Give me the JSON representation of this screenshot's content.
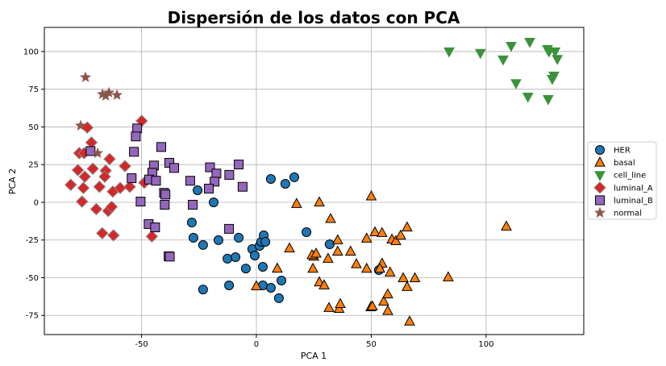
{
  "chart_data": {
    "type": "scatter",
    "title": "Dispersión de los datos con PCA",
    "xlabel": "PCA 1",
    "ylabel": "PCA 2",
    "xlim": [
      -92.3,
      142.5
    ],
    "ylim": [
      -87.7,
      116
    ],
    "xticks": [
      -50,
      0,
      50,
      100
    ],
    "yticks": [
      -75,
      -50,
      -25,
      0,
      25,
      50,
      75,
      100
    ],
    "grid": true,
    "legend_position": "center-right",
    "series": [
      {
        "name": "HER",
        "marker": "circle",
        "color": "#1f77b4",
        "edge": "#000000",
        "points": [
          [
            -25.6,
            8
          ],
          [
            -18.6,
            0
          ],
          [
            -28.1,
            -13.4
          ],
          [
            -27.4,
            -23.5
          ],
          [
            -23.2,
            -28.3
          ],
          [
            -16.5,
            -25.1
          ],
          [
            -7.7,
            -23.5
          ],
          [
            -23.2,
            -57.8
          ],
          [
            -12.6,
            -37.4
          ],
          [
            -9.1,
            -36.4
          ],
          [
            -11.9,
            -55.1
          ],
          [
            -4.6,
            -43.9
          ],
          [
            -1.8,
            -31
          ],
          [
            -0.7,
            -35.3
          ],
          [
            1.4,
            -28.9
          ],
          [
            2.1,
            -26.2
          ],
          [
            3.2,
            -21.9
          ],
          [
            3.9,
            -26.2
          ],
          [
            2.8,
            -42.8
          ],
          [
            2.8,
            -55.1
          ],
          [
            6.3,
            -56.7
          ],
          [
            10.9,
            -51.9
          ],
          [
            9.8,
            -63.6
          ],
          [
            6.3,
            15.5
          ],
          [
            12.6,
            12.3
          ],
          [
            16.5,
            16.6
          ],
          [
            21.8,
            -19.8
          ],
          [
            31.9,
            -27.8
          ],
          [
            53.3,
            -44.9
          ]
        ]
      },
      {
        "name": "basal",
        "marker": "triangle-up",
        "color": "#ff7f0e",
        "edge": "#000000",
        "points": [
          [
            17.5,
            -1
          ],
          [
            27.4,
            0
          ],
          [
            32.3,
            -11
          ],
          [
            50,
            4
          ],
          [
            14.4,
            -30.5
          ],
          [
            9.1,
            -43.9
          ],
          [
            0,
            -55.6
          ],
          [
            25,
            -36
          ],
          [
            24.2,
            -35
          ],
          [
            26,
            -34
          ],
          [
            31.2,
            -37.4
          ],
          [
            35.4,
            -32.6
          ],
          [
            41,
            -32.6
          ],
          [
            24.6,
            -44
          ],
          [
            27.4,
            -53
          ],
          [
            29.5,
            -55
          ],
          [
            31.6,
            -70
          ],
          [
            36,
            -70.6
          ],
          [
            36.5,
            -67.4
          ],
          [
            35.4,
            -25.1
          ],
          [
            43.5,
            -41
          ],
          [
            48,
            -24
          ],
          [
            48,
            -44
          ],
          [
            49.8,
            -69.5
          ],
          [
            50.5,
            -69
          ],
          [
            51.6,
            -19.8
          ],
          [
            54.7,
            -20.3
          ],
          [
            54.7,
            -40.6
          ],
          [
            53.7,
            -43.9
          ],
          [
            55.4,
            -65.8
          ],
          [
            57.2,
            -61
          ],
          [
            57.2,
            -72
          ],
          [
            58.2,
            -46.5
          ],
          [
            59,
            -24.6
          ],
          [
            60.7,
            -25.7
          ],
          [
            62.8,
            -22
          ],
          [
            63.9,
            -50.3
          ],
          [
            65.6,
            -16.6
          ],
          [
            65.6,
            -56.1
          ],
          [
            66.7,
            -79
          ],
          [
            69,
            -50.3
          ],
          [
            83.5,
            -49.7
          ],
          [
            108.8,
            -16
          ]
        ]
      },
      {
        "name": "cell_line",
        "marker": "triangle-down",
        "color": "#3a923a",
        "edge": "#3a923a",
        "points": [
          [
            83.9,
            100
          ],
          [
            97.5,
            99
          ],
          [
            107.4,
            94.7
          ],
          [
            110.9,
            103.7
          ],
          [
            113,
            79
          ],
          [
            119,
            106.4
          ],
          [
            118.2,
            70
          ],
          [
            126.7,
            101.6
          ],
          [
            127.4,
            100
          ],
          [
            127,
            68.4
          ],
          [
            130,
            100
          ],
          [
            131,
            95
          ],
          [
            128.8,
            81.8
          ],
          [
            129.5,
            84
          ]
        ]
      },
      {
        "name": "luminal_A",
        "marker": "diamond",
        "color": "#d62728",
        "edge": "#888888",
        "points": [
          [
            -49.9,
            54
          ],
          [
            -73.6,
            49.6
          ],
          [
            -71.8,
            39.7
          ],
          [
            -77.1,
            32.6
          ],
          [
            -75,
            32.6
          ],
          [
            -63.9,
            28.7
          ],
          [
            -57.2,
            24
          ],
          [
            -77.7,
            21.4
          ],
          [
            -71.2,
            22.3
          ],
          [
            -65.6,
            21
          ],
          [
            -74.7,
            17
          ],
          [
            -66,
            17
          ],
          [
            -80.8,
            11.6
          ],
          [
            -75.3,
            9.5
          ],
          [
            -68.3,
            10.3
          ],
          [
            -62.5,
            7.1
          ],
          [
            -59.3,
            9.5
          ],
          [
            -55.1,
            10.3
          ],
          [
            -48.8,
            13
          ],
          [
            -75.9,
            0.5
          ],
          [
            -69.7,
            -4.5
          ],
          [
            -64.5,
            -5.7
          ],
          [
            -63,
            -3
          ],
          [
            -67.1,
            -20.5
          ],
          [
            -62.2,
            -21.9
          ],
          [
            -45.5,
            -22.6
          ]
        ]
      },
      {
        "name": "luminal_B",
        "marker": "square",
        "color": "#9467bd",
        "edge": "#000000",
        "points": [
          [
            -51.9,
            49
          ],
          [
            -52.5,
            43.7
          ],
          [
            -72.2,
            34
          ],
          [
            -53.3,
            33.5
          ],
          [
            -41.4,
            36.7
          ],
          [
            -37.9,
            26.2
          ],
          [
            -35.8,
            22.8
          ],
          [
            -44.6,
            24.4
          ],
          [
            -45.3,
            19.6
          ],
          [
            -54.3,
            16
          ],
          [
            -46.7,
            15.1
          ],
          [
            -43.7,
            14.3
          ],
          [
            -28.8,
            14.3
          ],
          [
            -20.2,
            23.2
          ],
          [
            -17.4,
            19.1
          ],
          [
            -18.2,
            13.7
          ],
          [
            -20.7,
            9.1
          ],
          [
            -11.8,
            18.2
          ],
          [
            -7.7,
            25.1
          ],
          [
            -6,
            10.3
          ],
          [
            -40.2,
            6.3
          ],
          [
            -39.6,
            5.2
          ],
          [
            -50.4,
            0.5
          ],
          [
            -39.9,
            -1.6
          ],
          [
            -27.7,
            -1.6
          ],
          [
            -46.9,
            -14.4
          ],
          [
            -44.1,
            -16.6
          ],
          [
            -11.9,
            -17.6
          ],
          [
            -38.2,
            -35.8
          ],
          [
            -37.7,
            -36
          ]
        ]
      },
      {
        "name": "normal",
        "marker": "star",
        "color": "#8c564b",
        "edge": "#8c564b",
        "points": [
          [
            -74.4,
            82.9
          ],
          [
            -67,
            71.7
          ],
          [
            -65.6,
            70.6
          ],
          [
            -64.2,
            72.7
          ],
          [
            -60.7,
            71.1
          ],
          [
            -76.5,
            50.8
          ],
          [
            -69.1,
            32.6
          ]
        ]
      }
    ]
  }
}
